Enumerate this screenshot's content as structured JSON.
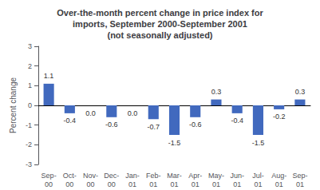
{
  "chart_data": {
    "type": "bar",
    "title": "Over-the-month percent change in price index for\nimports, September 2000-September 2001\n(not seasonally adjusted)",
    "ylabel": "Percent change",
    "categories": [
      "Sep-\n00",
      "Oct-\n00",
      "Nov-\n00",
      "Dec-\n00",
      "Jan-\n01",
      "Feb-\n01",
      "Mar-\n01",
      "Apr-\n01",
      "May-\n01",
      "Jun-\n01",
      "Jul-\n01",
      "Aug-\n01",
      "Sep-\n01"
    ],
    "values": [
      1.1,
      -0.4,
      0.0,
      -0.6,
      0.0,
      -0.7,
      -1.5,
      -0.6,
      0.3,
      -0.4,
      -1.5,
      -0.2,
      0.3
    ],
    "value_labels": [
      "1.1",
      "-0.4",
      "0.0",
      "-0.6",
      "0.0",
      "-0.7",
      "-1.5",
      "-0.6",
      "0.3",
      "-0.4",
      "-1.5",
      "-0.2",
      "0.3"
    ],
    "data_labels": true,
    "color": "#4169be",
    "ylim": [
      -3,
      3
    ],
    "yticks": [
      -3,
      -2,
      -1,
      0,
      1,
      2,
      3
    ],
    "grid": false
  }
}
